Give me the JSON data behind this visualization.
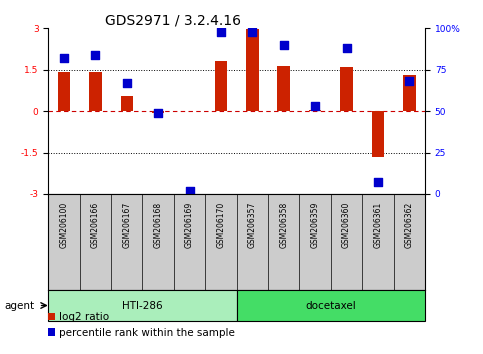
{
  "title": "GDS2971 / 3.2.4.16",
  "samples": [
    "GSM206100",
    "GSM206166",
    "GSM206167",
    "GSM206168",
    "GSM206169",
    "GSM206170",
    "GSM206357",
    "GSM206358",
    "GSM206359",
    "GSM206360",
    "GSM206361",
    "GSM206362"
  ],
  "log2_ratio": [
    1.4,
    1.42,
    0.55,
    -0.05,
    0.0,
    1.8,
    2.97,
    1.65,
    0.05,
    1.6,
    -1.65,
    1.3
  ],
  "percentile": [
    82,
    84,
    67,
    49,
    2,
    98,
    98,
    90,
    53,
    88,
    7,
    68
  ],
  "bar_color": "#cc2200",
  "dot_color": "#0000cc",
  "hti286_color": "#aaeebb",
  "docetaxel_color": "#44dd66",
  "hti286_samples": 6,
  "docetaxel_samples": 6,
  "ylim": [
    -3,
    3
  ],
  "yticks_left": [
    -3,
    -1.5,
    0,
    1.5,
    3
  ],
  "yticks_right": [
    0,
    25,
    50,
    75,
    100
  ],
  "hline_zero_color": "#cc0000",
  "background_color": "#ffffff",
  "plot_bg_color": "#ffffff",
  "label_bg_color": "#cccccc",
  "legend_red_label": "log2 ratio",
  "legend_blue_label": "percentile rank within the sample",
  "agent_label": "agent",
  "hti286_label": "HTI-286",
  "docetaxel_label": "docetaxel",
  "bar_width": 0.4,
  "dot_size": 35,
  "title_fontsize": 10,
  "tick_fontsize": 6.5,
  "sample_fontsize": 5.5,
  "label_fontsize": 7.5,
  "legend_fontsize": 7.5
}
